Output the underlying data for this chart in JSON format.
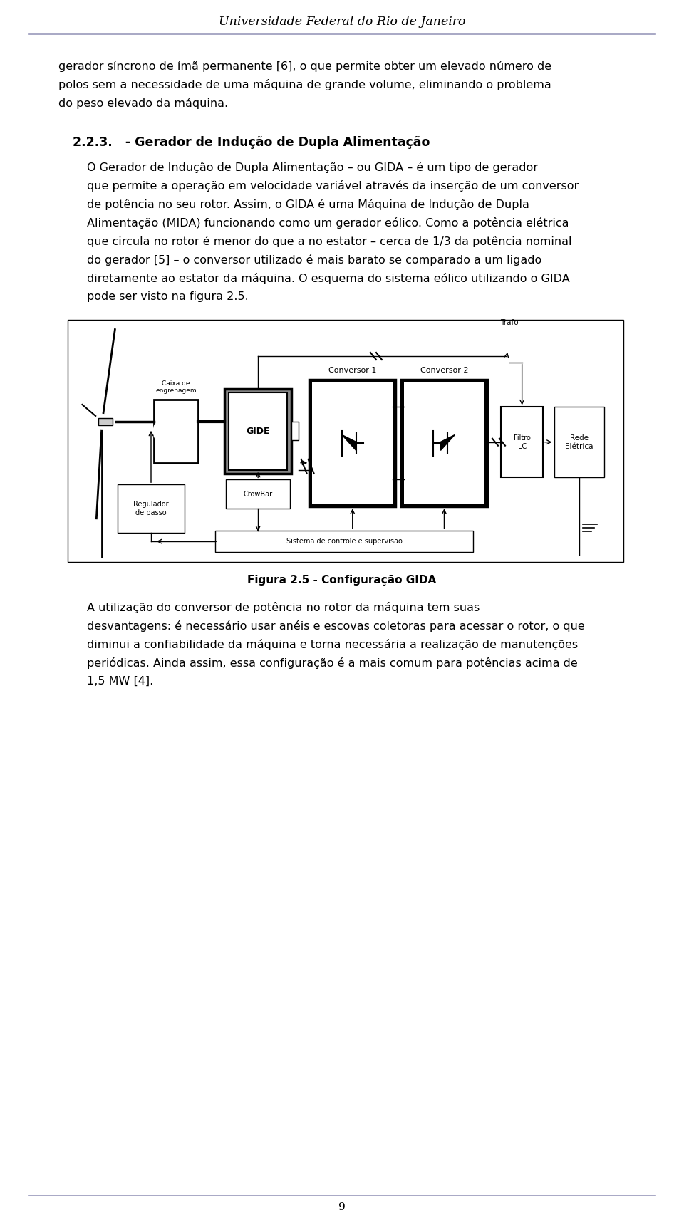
{
  "header_text": "Universidade Federal do Rio de Janeiro",
  "footer_page": "9",
  "para1_lines": [
    "gerador síncrono de ímã permanente [6], o que permite obter um elevado número de",
    "polos sem a necessidade de uma máquina de grande volume, eliminando o problema",
    "do peso elevado da máquina."
  ],
  "section_title": "2.2.3.   - Gerador de Indução de Dupla Alimentação",
  "para2_lines": [
    "O Gerador de Indução de Dupla Alimentação – ou GIDA – é um tipo de gerador",
    "que permite a operação em velocidade variável através da inserção de um conversor",
    "de potência no seu rotor. Assim, o GIDA é uma Máquina de Indução de Dupla",
    "Alimentação (MIDA) funcionando como um gerador eólico. Como a potência elétrica",
    "que circula no rotor é menor do que a no estator – cerca de 1/3 da potência nominal",
    "do gerador [5] – o conversor utilizado é mais barato se comparado a um ligado",
    "diretamente ao estator da máquina. O esquema do sistema eólico utilizando o GIDA",
    "pode ser visto na figura 2.5."
  ],
  "figure_caption": "Figura 2.5 - Configuração GIDA",
  "para3_lines": [
    "A utilização do conversor de potência no rotor da máquina tem suas",
    "desvantagens: é necessário usar anéis e escovas coletoras para acessar o rotor, o que",
    "diminui a confiabilidade da máquina e torna necessária a realização de manutenções",
    "periódicas. Ainda assim, essa configuração é a mais comum para potências acima de",
    "1,5 MW [4]."
  ],
  "text_color": "#000000",
  "bg_color": "#ffffff"
}
